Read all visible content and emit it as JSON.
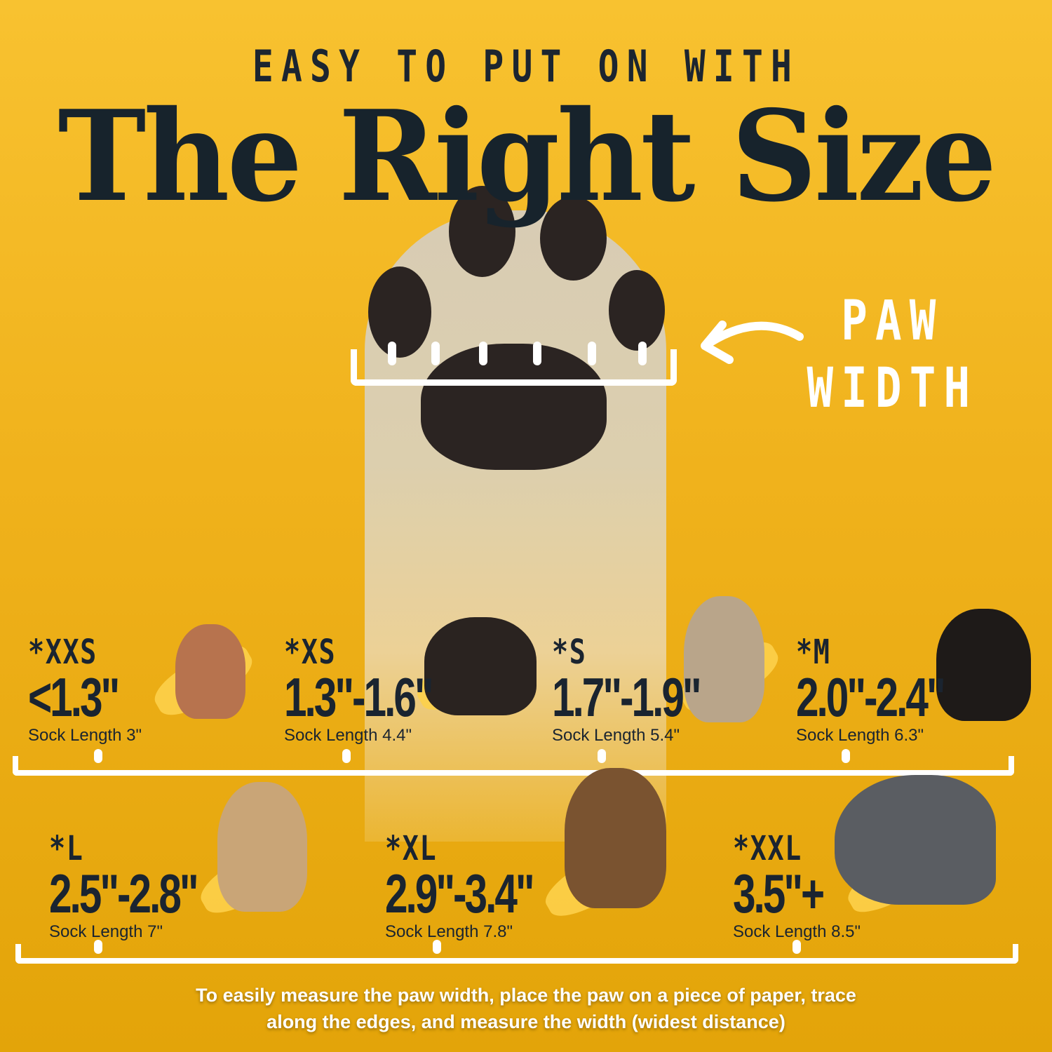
{
  "heading": {
    "kicker": "EASY TO PUT ON WITH",
    "title": "The Right Size"
  },
  "paw_label": {
    "line1": "PAW",
    "line2": "WIDTH",
    "arrow_icon": "arrow-left-curved"
  },
  "sizes_row1": [
    {
      "code": "*XXS",
      "range": "<1.3\"",
      "sock": "Sock Length 3\"",
      "dog": "chihuahua",
      "color": "#b7734e"
    },
    {
      "code": "*XS",
      "range": "1.3\"-1.6\"",
      "sock": "Sock Length 4.4\"",
      "dog": "yorkshire-terrier",
      "color": "#2a2320"
    },
    {
      "code": "*S",
      "range": "1.7\"-1.9\"",
      "sock": "Sock Length 5.4\"",
      "dog": "french-bulldog",
      "color": "#b9a58a"
    },
    {
      "code": "*M",
      "range": "2.0\"-2.4\"",
      "sock": "Sock Length 6.3\"",
      "dog": "bernese-mountain-dog",
      "color": "#1e1a18"
    }
  ],
  "sizes_row2": [
    {
      "code": "*L",
      "range": "2.5\"-2.8\"",
      "sock": "Sock Length 7\"",
      "dog": "golden-retriever",
      "color": "#c9a577"
    },
    {
      "code": "*XL",
      "range": "2.9\"-3.4\"",
      "sock": "Sock Length 7.8\"",
      "dog": "german-shepherd",
      "color": "#7a5330"
    },
    {
      "code": "*XXL",
      "range": "3.5\"+",
      "sock": "Sock Length 8.5\"",
      "dog": "great-dane",
      "color": "#5a5d62"
    }
  ],
  "footer": {
    "line1": "To easily measure the paw width, place the paw on a piece of paper, trace",
    "line2": "along the edges, and measure the width (widest distance)"
  }
}
